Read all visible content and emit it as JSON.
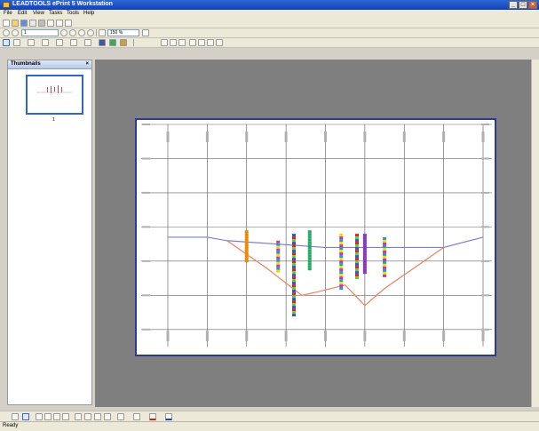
{
  "window": {
    "title": "LEADTOOLS ePrint 5 Workstation",
    "minimize": "_",
    "maximize": "□",
    "close": "×"
  },
  "menu": [
    {
      "label": "File"
    },
    {
      "label": "Edit"
    },
    {
      "label": "View"
    },
    {
      "label": "Tasks"
    },
    {
      "label": "Tools"
    },
    {
      "label": "Help"
    }
  ],
  "toolbar2": {
    "page_field": "1",
    "zoom_field": "150 %"
  },
  "thumbnails": {
    "title": "Thumbnails",
    "close": "×",
    "page_number": "1"
  },
  "status": {
    "text": "Ready"
  },
  "colors": {
    "title_bar": "#1f52c4",
    "page_border": "#2a3a9a",
    "workspace": "#7f7f7f",
    "terrain_line": "#7b7fcc",
    "section_line": "#f08060"
  },
  "chart_data": {
    "type": "line",
    "title": "",
    "xlabel": "",
    "ylabel": "",
    "grid": true,
    "x_ticks": [
      0,
      1,
      2,
      3,
      4,
      5,
      6,
      7,
      8
    ],
    "y_ticks": [
      0,
      1,
      2,
      3,
      4,
      5,
      6
    ],
    "series": [
      {
        "values": [
          [
            0,
            3.3
          ],
          [
            1,
            3.3
          ],
          [
            1.5,
            3.4
          ],
          [
            4,
            3.6
          ],
          [
            5,
            3.6
          ],
          [
            7,
            3.6
          ],
          [
            8,
            3.3
          ]
        ]
      },
      {
        "values": [
          [
            1.5,
            3.4
          ],
          [
            2.5,
            4.2
          ],
          [
            3.4,
            5.0
          ],
          [
            3.8,
            4.9
          ],
          [
            4.5,
            4.7
          ],
          [
            5.0,
            5.3
          ],
          [
            5.5,
            4.8
          ],
          [
            7,
            3.6
          ]
        ]
      }
    ]
  }
}
